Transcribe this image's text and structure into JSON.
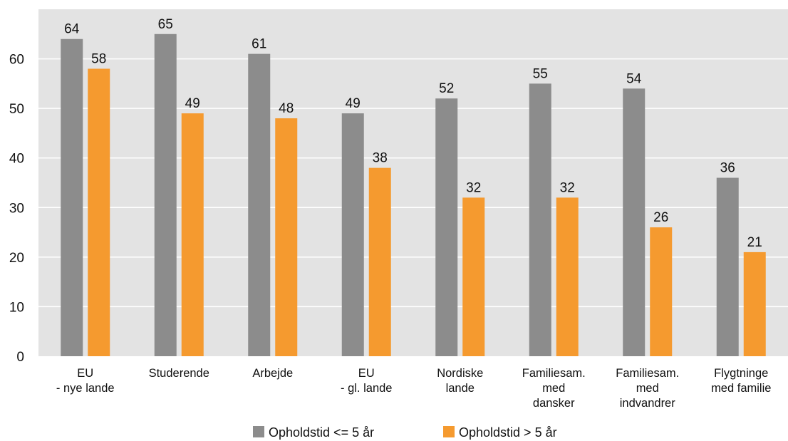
{
  "chart_data": {
    "type": "bar",
    "categories": [
      [
        "EU",
        "- nye lande"
      ],
      [
        "Studerende"
      ],
      [
        "Arbejde"
      ],
      [
        "EU",
        "- gl. lande"
      ],
      [
        "Nordiske",
        "lande"
      ],
      [
        "Familiesam.",
        "med",
        "dansker"
      ],
      [
        "Familiesam.",
        "med",
        "indvandrer"
      ],
      [
        "Flygtninge",
        "med familie"
      ]
    ],
    "series": [
      {
        "name": "Opholdstid <= 5 år",
        "color": "#8c8c8c",
        "values": [
          64,
          65,
          61,
          49,
          52,
          55,
          54,
          36
        ]
      },
      {
        "name": "Opholdstid > 5 år",
        "color": "#f59a2f",
        "values": [
          58,
          49,
          48,
          38,
          32,
          32,
          26,
          21
        ]
      }
    ],
    "ylim": [
      0,
      70
    ],
    "yticks": [
      0,
      10,
      20,
      30,
      40,
      50,
      60
    ],
    "grid": true,
    "legend": "bottom",
    "background": "#e3e3e3",
    "title": "",
    "xlabel": "",
    "ylabel": ""
  }
}
